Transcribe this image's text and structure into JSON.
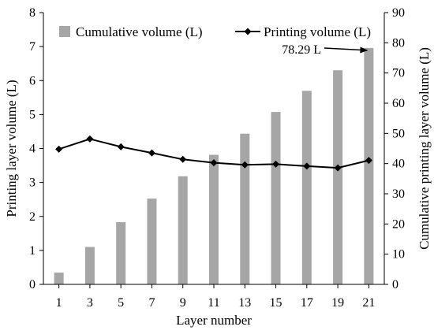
{
  "chart_data": {
    "type": "bar",
    "categories": [
      "1",
      "3",
      "5",
      "7",
      "9",
      "11",
      "13",
      "15",
      "17",
      "19",
      "21"
    ],
    "xlabel": "Layer number",
    "series": [
      {
        "name": "Cumulative volume (L)",
        "type": "bar",
        "axis": "right",
        "color": "#a6a6a6",
        "values": [
          3.9,
          12.4,
          20.6,
          28.4,
          35.8,
          42.9,
          49.9,
          57.1,
          64.1,
          70.9,
          78.29
        ]
      },
      {
        "name": "Printing volume (L)",
        "type": "line",
        "axis": "left",
        "color": "#000000",
        "marker": "diamond",
        "values": [
          3.98,
          4.28,
          4.05,
          3.87,
          3.68,
          3.58,
          3.52,
          3.54,
          3.48,
          3.43,
          3.65
        ]
      }
    ],
    "y_left": {
      "label": "Printing layer volume (L)",
      "lim": [
        0,
        8
      ],
      "ticks": [
        "0",
        "1",
        "2",
        "3",
        "4",
        "5",
        "6",
        "7",
        "8"
      ]
    },
    "y_right": {
      "label": "Cumulative printing layer volume (L)",
      "lim": [
        0,
        90
      ],
      "ticks": [
        "0",
        "10",
        "20",
        "30",
        "40",
        "50",
        "60",
        "70",
        "80",
        "90"
      ]
    },
    "annotation": {
      "text": "78.29 L",
      "target_category": "21",
      "target_series": "Cumulative volume (L)"
    },
    "legend": "top",
    "grid": false
  }
}
